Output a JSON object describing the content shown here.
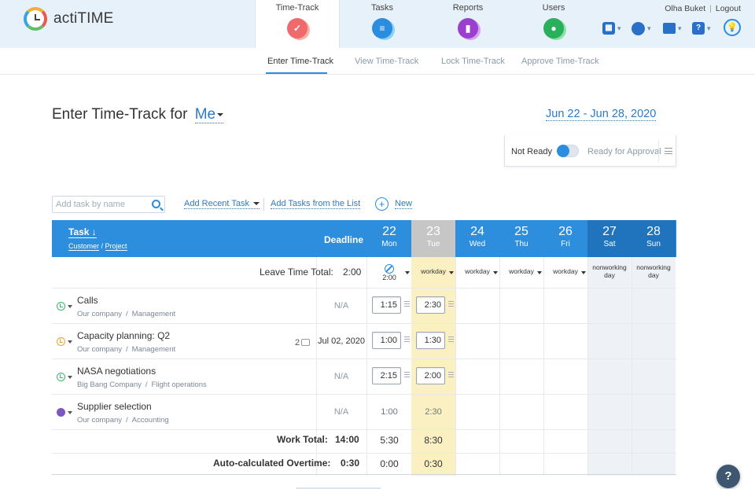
{
  "app": {
    "name": "actiTIME"
  },
  "nav": [
    {
      "label": "Time-Track",
      "icon": "check-icon",
      "active": true
    },
    {
      "label": "Tasks",
      "icon": "list-icon"
    },
    {
      "label": "Reports",
      "icon": "chart-icon"
    },
    {
      "label": "Users",
      "icon": "user-icon"
    }
  ],
  "user": {
    "name": "Olha Buket",
    "logout": "Logout"
  },
  "subnav": [
    "Enter Time-Track",
    "View Time-Track",
    "Lock Time-Track",
    "Approve Time-Track"
  ],
  "page": {
    "title": "Enter Time-Track for",
    "who": "Me",
    "date_range": "Jun 22 - Jun 28, 2020"
  },
  "approval": {
    "not_ready": "Not Ready",
    "ready": "Ready for Approval"
  },
  "controls": {
    "search_placeholder": "Add task by name",
    "add_recent": "Add Recent Task",
    "add_from_list": "Add Tasks from the List",
    "new": "New"
  },
  "table": {
    "task_header": "Task",
    "customer_header": "Customer",
    "project_header": "Project",
    "deadline_header": "Deadline",
    "days": [
      {
        "num": "22",
        "name": "Mon"
      },
      {
        "num": "23",
        "name": "Tue"
      },
      {
        "num": "24",
        "name": "Wed"
      },
      {
        "num": "25",
        "name": "Thu"
      },
      {
        "num": "26",
        "name": "Fri"
      },
      {
        "num": "27",
        "name": "Sat"
      },
      {
        "num": "28",
        "name": "Sun"
      }
    ],
    "leave_label": "Leave Time Total:",
    "leave_total": "2:00",
    "leave_cells": [
      "2:00",
      "workday",
      "workday",
      "workday",
      "workday",
      "nonworking day",
      "nonworking day"
    ],
    "tasks": [
      {
        "name": "Calls",
        "customer": "Our company",
        "project": "Management",
        "deadline": "N/A",
        "mon": "1:15",
        "tue": "2:30",
        "status_color": "#3bb56a"
      },
      {
        "name": "Capacity planning: Q2",
        "customer": "Our company",
        "project": "Management",
        "deadline": "Jul 02, 2020",
        "comments": "2",
        "mon": "1:00",
        "tue": "1:30",
        "status_color": "#f0a030"
      },
      {
        "name": "NASA negotiations",
        "customer": "Big Bang Company",
        "project": "Flight operations",
        "deadline": "N/A",
        "mon": "2:15",
        "tue": "2:00",
        "status_color": "#3bb56a"
      },
      {
        "name": "Supplier selection",
        "customer": "Our company",
        "project": "Accounting",
        "deadline": "N/A",
        "mon": "1:00",
        "tue": "2:30",
        "status_color": "#7e57c2"
      }
    ],
    "work_total_label": "Work Total:",
    "work_total": "14:00",
    "work_mon": "5:30",
    "work_tue": "8:30",
    "overtime_label": "Auto-calculated Overtime:",
    "overtime_total": "0:30",
    "overtime_mon": "0:00",
    "overtime_tue": "0:30"
  },
  "help": "?"
}
